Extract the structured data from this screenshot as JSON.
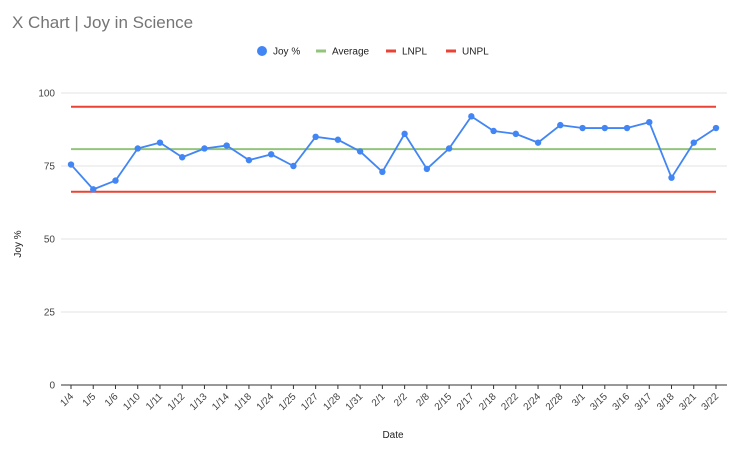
{
  "chart_data": {
    "type": "line",
    "title": "X Chart | Joy in Science",
    "xlabel": "Date",
    "ylabel": "Joy %",
    "ylim": [
      0,
      100
    ],
    "yticks": [
      0,
      25,
      50,
      75,
      100
    ],
    "grid": true,
    "legend_position": "top",
    "categories": [
      "1/4",
      "1/5",
      "1/6",
      "1/10",
      "1/11",
      "1/12",
      "1/13",
      "1/14",
      "1/18",
      "1/24",
      "1/25",
      "1/27",
      "1/28",
      "1/31",
      "2/1",
      "2/2",
      "2/8",
      "2/15",
      "2/17",
      "2/18",
      "2/22",
      "2/24",
      "2/28",
      "3/1",
      "3/15",
      "3/16",
      "3/17",
      "3/18",
      "3/21",
      "3/22"
    ],
    "series": [
      {
        "name": "Joy %",
        "color": "#4285F4",
        "marker": "circle",
        "values": [
          75.5,
          67,
          70,
          81,
          83,
          78,
          81,
          82,
          77,
          79,
          75,
          85,
          84,
          80,
          73,
          86,
          74,
          81,
          92,
          87,
          86,
          83,
          89,
          88,
          88,
          88,
          90,
          71,
          83,
          88
        ]
      },
      {
        "name": "Average",
        "color": "#93C47D",
        "constant": 80.8
      },
      {
        "name": "LNPL",
        "color": "#EA4335",
        "constant": 66.2
      },
      {
        "name": "UNPL",
        "color": "#EA4335",
        "constant": 95.3
      }
    ]
  }
}
